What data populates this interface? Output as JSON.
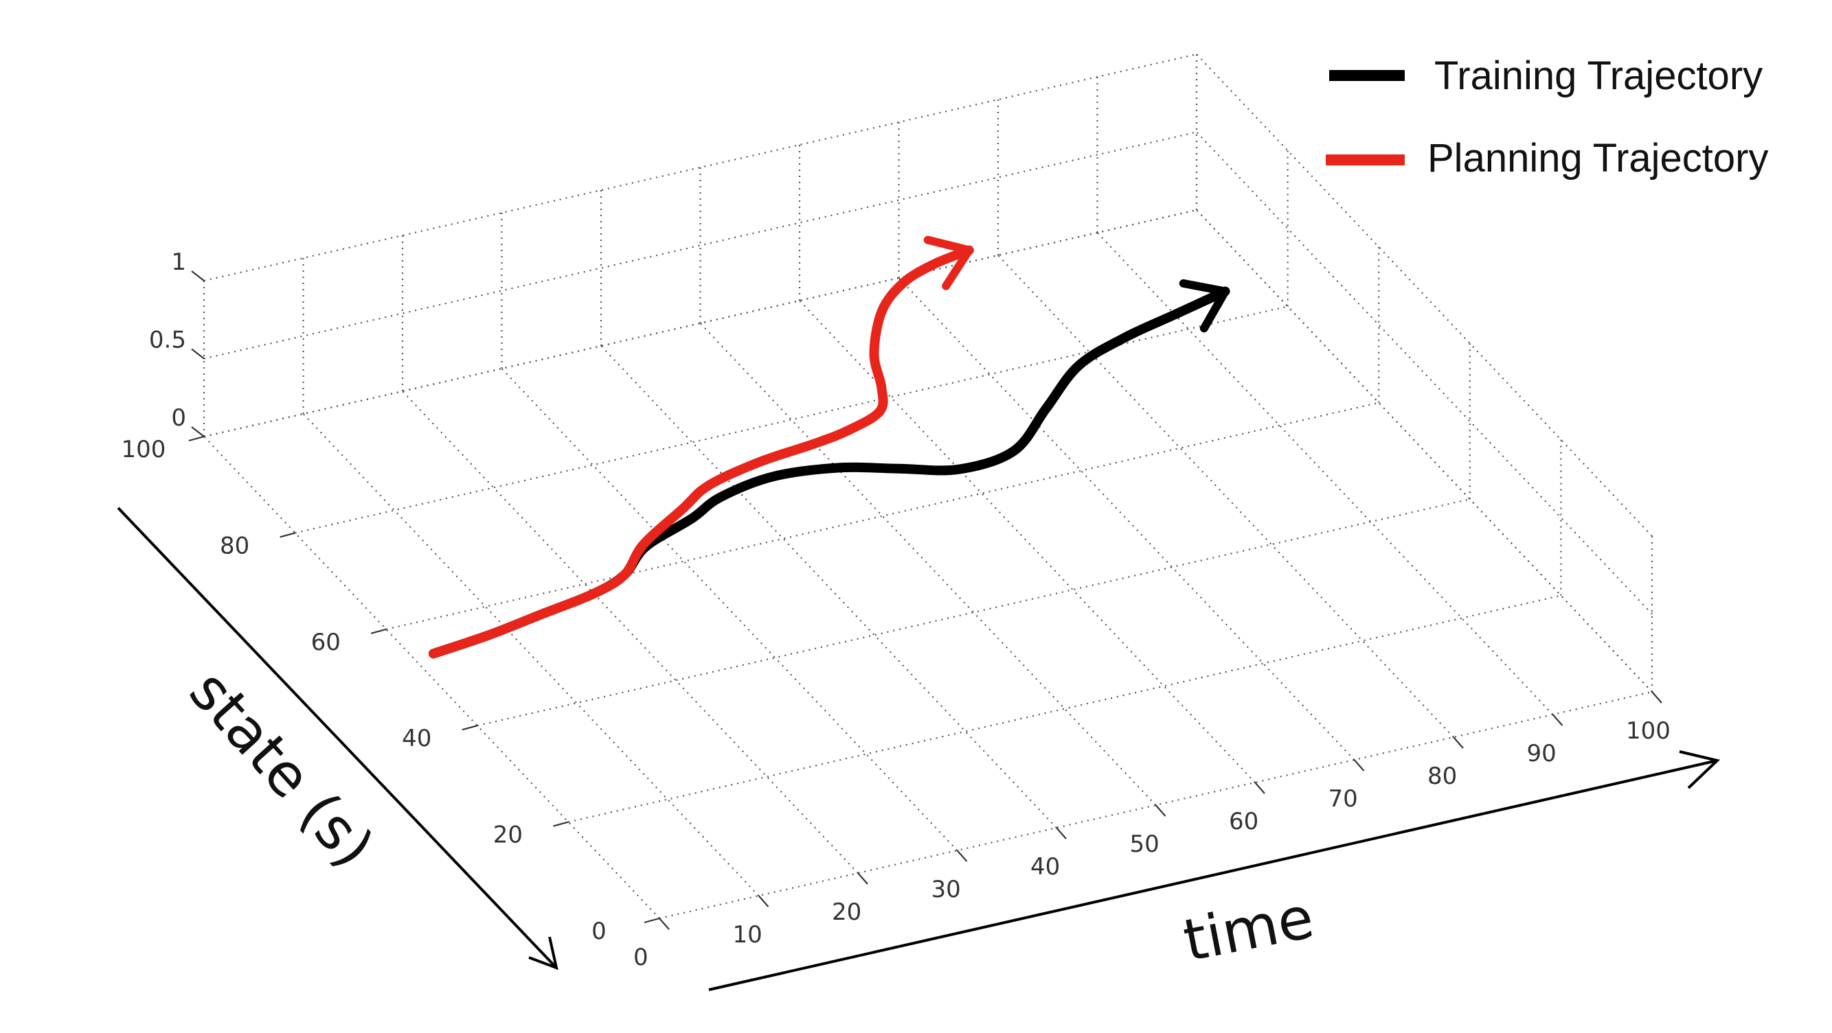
{
  "chart_data": {
    "type": "line",
    "subtype": "3d-line",
    "legend": {
      "position": "top-right",
      "entries": [
        {
          "label": "Training Trajectory",
          "color": "#000000"
        },
        {
          "label": "Planning Trajectory",
          "color": "#e8251a"
        }
      ]
    },
    "axes": {
      "x": {
        "label": "time",
        "ticks": [
          "0",
          "10",
          "20",
          "30",
          "40",
          "50",
          "60",
          "70",
          "80",
          "90",
          "100"
        ],
        "range": [
          0,
          100
        ]
      },
      "y": {
        "label": "state (s)",
        "ticks": [
          "0",
          "20",
          "40",
          "60",
          "80",
          "100"
        ],
        "range": [
          0,
          100
        ]
      },
      "z": {
        "label": "",
        "ticks": [
          "0",
          "0.5",
          "1"
        ],
        "range": [
          0,
          1
        ]
      }
    },
    "grid": true,
    "series": [
      {
        "name": "Training Trajectory",
        "color": "#000000",
        "x": [
          2,
          8,
          14,
          20,
          24,
          28,
          34,
          38,
          44,
          50,
          55,
          60,
          66,
          72,
          78,
          84,
          90,
          96
        ],
        "y": [
          54,
          55,
          56.5,
          58,
          60,
          64,
          67,
          69.5,
          71,
          70,
          67.5,
          65,
          66,
          72,
          78,
          81,
          83,
          85
        ],
        "z": [
          0,
          0,
          0,
          0,
          0,
          0,
          0,
          0,
          0,
          0,
          0,
          0,
          0,
          0,
          0,
          0,
          0,
          0
        ]
      },
      {
        "name": "Planning Trajectory",
        "color": "#e8251a",
        "x": [
          2,
          8,
          14,
          20,
          24,
          28,
          34,
          38,
          44,
          50,
          54,
          58,
          60,
          62,
          66,
          70,
          74,
          78
        ],
        "y": [
          54,
          55,
          56.5,
          58,
          60,
          64.5,
          69,
          72,
          74,
          75,
          76,
          78,
          82,
          88,
          95,
          99,
          101,
          102
        ],
        "z": [
          0,
          0,
          0,
          0,
          0,
          0,
          0,
          0,
          0,
          0,
          0,
          0,
          0,
          0,
          0,
          0,
          0,
          0
        ]
      }
    ]
  }
}
